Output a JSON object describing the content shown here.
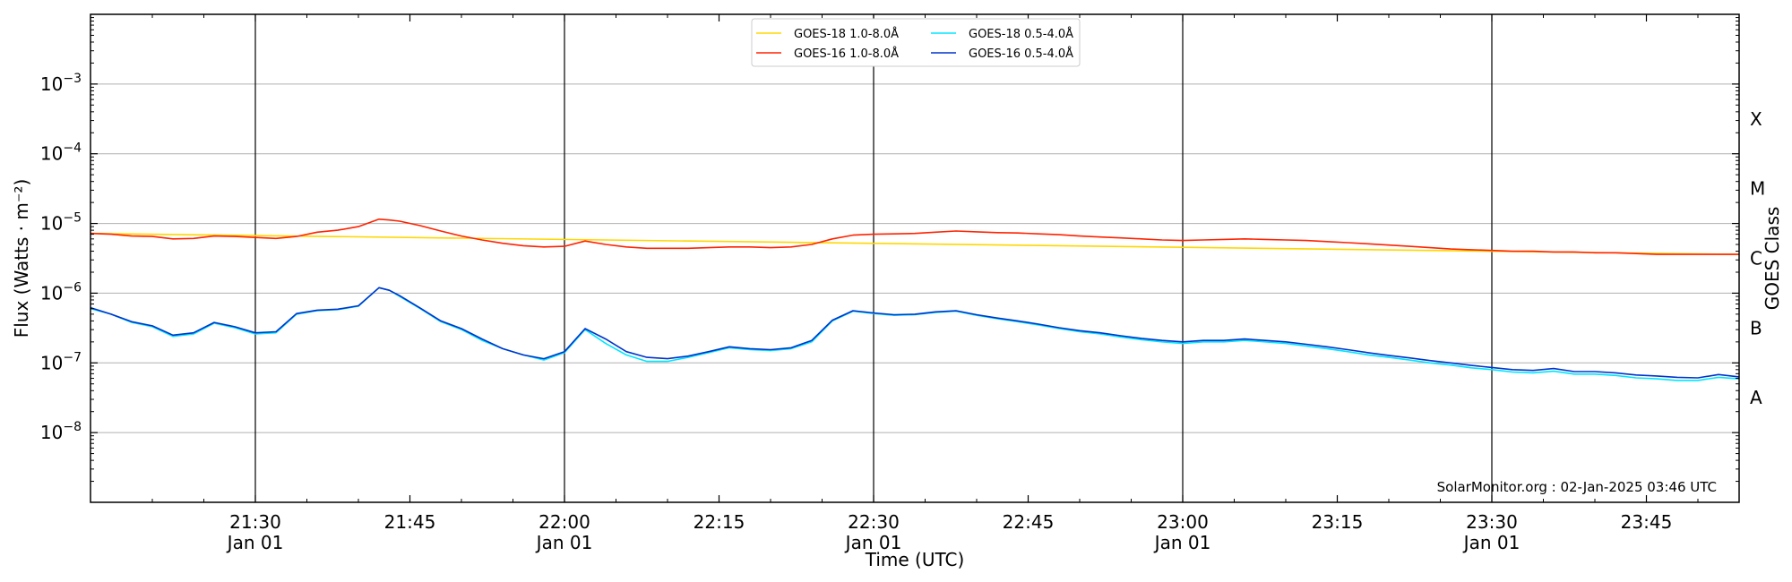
{
  "chart_data": {
    "type": "line",
    "title": "",
    "xlabel": "Time (UTC)",
    "ylabel": "Flux (Watts · m⁻²)",
    "ylabel_right": "GOES Class",
    "yscale": "log",
    "ylim": [
      1e-09,
      0.01
    ],
    "xlim_minutes": [
      1274,
      1434
    ],
    "x_ticks": [
      {
        "minute": 1290,
        "time": "21:30",
        "date": "Jan 01",
        "major": true
      },
      {
        "minute": 1305,
        "time": "21:45",
        "date": "",
        "major": false
      },
      {
        "minute": 1320,
        "time": "22:00",
        "date": "Jan 01",
        "major": true
      },
      {
        "minute": 1335,
        "time": "22:15",
        "date": "",
        "major": false
      },
      {
        "minute": 1350,
        "time": "22:30",
        "date": "Jan 01",
        "major": true
      },
      {
        "minute": 1365,
        "time": "22:45",
        "date": "",
        "major": false
      },
      {
        "minute": 1380,
        "time": "23:00",
        "date": "Jan 01",
        "major": true
      },
      {
        "minute": 1395,
        "time": "23:15",
        "date": "",
        "major": false
      },
      {
        "minute": 1410,
        "time": "23:30",
        "date": "Jan 01",
        "major": true
      },
      {
        "minute": 1425,
        "time": "23:45",
        "date": "",
        "major": false
      }
    ],
    "y_ticks": [
      {
        "exp": -8,
        "base": "10",
        "sup": "−8"
      },
      {
        "exp": -7,
        "base": "10",
        "sup": "−7"
      },
      {
        "exp": -6,
        "base": "10",
        "sup": "−6"
      },
      {
        "exp": -5,
        "base": "10",
        "sup": "−5"
      },
      {
        "exp": -4,
        "base": "10",
        "sup": "−4"
      },
      {
        "exp": -3,
        "base": "10",
        "sup": "−3"
      }
    ],
    "goes_classes": [
      {
        "label": "A",
        "exp": -7.5
      },
      {
        "label": "B",
        "exp": -6.5
      },
      {
        "label": "C",
        "exp": -5.5
      },
      {
        "label": "M",
        "exp": -4.5
      },
      {
        "label": "X",
        "exp": -3.5
      }
    ],
    "grid": true,
    "legend_position": "top-center",
    "credit": "SolarMonitor.org : 02-Jan-2025 03:46 UTC",
    "series": [
      {
        "name": "GOES-18 1.0-8.0Å",
        "color": "#ffd700",
        "x": [
          1274,
          1434
        ],
        "y": [
          7.2e-06,
          3.6e-06
        ]
      },
      {
        "name": "GOES-16 1.0-8.0Å",
        "color": "#ff2200",
        "x": [
          1274,
          1276,
          1278,
          1280,
          1282,
          1284,
          1286,
          1288,
          1290,
          1292,
          1294,
          1296,
          1298,
          1300,
          1302,
          1303,
          1304,
          1306,
          1308,
          1310,
          1312,
          1314,
          1316,
          1318,
          1320,
          1322,
          1324,
          1326,
          1328,
          1330,
          1332,
          1334,
          1336,
          1338,
          1340,
          1342,
          1344,
          1346,
          1348,
          1350,
          1352,
          1354,
          1356,
          1358,
          1360,
          1362,
          1364,
          1366,
          1368,
          1370,
          1372,
          1374,
          1376,
          1378,
          1380,
          1382,
          1384,
          1386,
          1388,
          1390,
          1392,
          1394,
          1396,
          1398,
          1400,
          1402,
          1404,
          1406,
          1408,
          1410,
          1412,
          1414,
          1416,
          1418,
          1420,
          1422,
          1424,
          1426,
          1428,
          1430,
          1432,
          1434
        ],
        "y": [
          7.2e-06,
          7e-06,
          6.6e-06,
          6.5e-06,
          6e-06,
          6.1e-06,
          6.6e-06,
          6.5e-06,
          6.3e-06,
          6.1e-06,
          6.5e-06,
          7.5e-06,
          8e-06,
          9e-06,
          1.15e-05,
          1.12e-05,
          1.08e-05,
          9.3e-06,
          7.8e-06,
          6.6e-06,
          5.8e-06,
          5.2e-06,
          4.8e-06,
          4.6e-06,
          4.7e-06,
          5.6e-06,
          5e-06,
          4.6e-06,
          4.4e-06,
          4.4e-06,
          4.4e-06,
          4.5e-06,
          4.6e-06,
          4.6e-06,
          4.5e-06,
          4.6e-06,
          5e-06,
          6e-06,
          6.8e-06,
          7e-06,
          7.1e-06,
          7.2e-06,
          7.5e-06,
          7.8e-06,
          7.6e-06,
          7.4e-06,
          7.3e-06,
          7.1e-06,
          6.9e-06,
          6.6e-06,
          6.4e-06,
          6.2e-06,
          6e-06,
          5.8e-06,
          5.7e-06,
          5.8e-06,
          5.9e-06,
          6e-06,
          5.9e-06,
          5.8e-06,
          5.7e-06,
          5.5e-06,
          5.3e-06,
          5.1e-06,
          4.9e-06,
          4.7e-06,
          4.5e-06,
          4.3e-06,
          4.2e-06,
          4.1e-06,
          4e-06,
          4e-06,
          3.9e-06,
          3.9e-06,
          3.8e-06,
          3.8e-06,
          3.7e-06,
          3.6e-06,
          3.6e-06,
          3.6e-06,
          3.6e-06,
          3.6e-06
        ]
      },
      {
        "name": "GOES-18 0.5-4.0Å",
        "color": "#00e5ff",
        "x": [
          1274,
          1276,
          1278,
          1280,
          1282,
          1284,
          1286,
          1288,
          1290,
          1292,
          1294,
          1296,
          1298,
          1300,
          1302,
          1303,
          1304,
          1306,
          1308,
          1310,
          1312,
          1314,
          1316,
          1318,
          1320,
          1322,
          1324,
          1326,
          1328,
          1330,
          1332,
          1334,
          1336,
          1338,
          1340,
          1342,
          1344,
          1346,
          1348,
          1350,
          1352,
          1354,
          1356,
          1358,
          1360,
          1362,
          1364,
          1366,
          1368,
          1370,
          1372,
          1374,
          1376,
          1378,
          1380,
          1382,
          1384,
          1386,
          1388,
          1390,
          1392,
          1394,
          1396,
          1398,
          1400,
          1402,
          1404,
          1406,
          1408,
          1410,
          1412,
          1414,
          1416,
          1418,
          1420,
          1422,
          1424,
          1426,
          1428,
          1430,
          1432,
          1434
        ],
        "y": [
          6e-07,
          5e-07,
          3.8e-07,
          3.3e-07,
          2.4e-07,
          2.6e-07,
          3.7e-07,
          3.2e-07,
          2.6e-07,
          2.7e-07,
          5e-07,
          5.6e-07,
          5.8e-07,
          6.5e-07,
          1.2e-06,
          1.1e-06,
          9e-07,
          6e-07,
          3.9e-07,
          3e-07,
          2.1e-07,
          1.6e-07,
          1.3e-07,
          1.1e-07,
          1.4e-07,
          3e-07,
          1.9e-07,
          1.3e-07,
          1.05e-07,
          1.05e-07,
          1.2e-07,
          1.4e-07,
          1.65e-07,
          1.55e-07,
          1.5e-07,
          1.6e-07,
          2e-07,
          4e-07,
          5.5e-07,
          5.1e-07,
          4.8e-07,
          4.9e-07,
          5.3e-07,
          5.5e-07,
          4.8e-07,
          4.3e-07,
          3.9e-07,
          3.5e-07,
          3.1e-07,
          2.8e-07,
          2.6e-07,
          2.35e-07,
          2.15e-07,
          2e-07,
          1.9e-07,
          2e-07,
          2e-07,
          2.1e-07,
          2e-07,
          1.9e-07,
          1.75e-07,
          1.6e-07,
          1.45e-07,
          1.3e-07,
          1.2e-07,
          1.1e-07,
          1e-07,
          9.3e-08,
          8.5e-08,
          8e-08,
          7.4e-08,
          7.2e-08,
          7.6e-08,
          6.9e-08,
          6.9e-08,
          6.6e-08,
          6.1e-08,
          5.9e-08,
          5.6e-08,
          5.6e-08,
          6.2e-08,
          5.9e-08
        ]
      },
      {
        "name": "GOES-16 0.5-4.0Å",
        "color": "#0033cc",
        "x": [
          1274,
          1276,
          1278,
          1280,
          1282,
          1284,
          1286,
          1288,
          1290,
          1292,
          1294,
          1296,
          1298,
          1300,
          1302,
          1303,
          1304,
          1306,
          1308,
          1310,
          1312,
          1314,
          1316,
          1318,
          1320,
          1322,
          1324,
          1326,
          1328,
          1330,
          1332,
          1334,
          1336,
          1338,
          1340,
          1342,
          1344,
          1346,
          1348,
          1350,
          1352,
          1354,
          1356,
          1358,
          1360,
          1362,
          1364,
          1366,
          1368,
          1370,
          1372,
          1374,
          1376,
          1378,
          1380,
          1382,
          1384,
          1386,
          1388,
          1390,
          1392,
          1394,
          1396,
          1398,
          1400,
          1402,
          1404,
          1406,
          1408,
          1410,
          1412,
          1414,
          1416,
          1418,
          1420,
          1422,
          1424,
          1426,
          1428,
          1430,
          1432,
          1434
        ],
        "y": [
          6.2e-07,
          5e-07,
          3.9e-07,
          3.4e-07,
          2.5e-07,
          2.7e-07,
          3.8e-07,
          3.3e-07,
          2.7e-07,
          2.8e-07,
          5.1e-07,
          5.7e-07,
          5.9e-07,
          6.6e-07,
          1.2e-06,
          1.1e-06,
          9.2e-07,
          6.1e-07,
          4e-07,
          3.1e-07,
          2.2e-07,
          1.6e-07,
          1.3e-07,
          1.15e-07,
          1.45e-07,
          3.1e-07,
          2.2e-07,
          1.45e-07,
          1.2e-07,
          1.15e-07,
          1.25e-07,
          1.45e-07,
          1.7e-07,
          1.6e-07,
          1.55e-07,
          1.65e-07,
          2.1e-07,
          4.1e-07,
          5.6e-07,
          5.2e-07,
          4.9e-07,
          5e-07,
          5.4e-07,
          5.6e-07,
          4.9e-07,
          4.4e-07,
          4e-07,
          3.6e-07,
          3.2e-07,
          2.9e-07,
          2.7e-07,
          2.45e-07,
          2.25e-07,
          2.1e-07,
          2e-07,
          2.1e-07,
          2.1e-07,
          2.2e-07,
          2.1e-07,
          2e-07,
          1.85e-07,
          1.7e-07,
          1.55e-07,
          1.4e-07,
          1.28e-07,
          1.18e-07,
          1.08e-07,
          1e-07,
          9.2e-08,
          8.6e-08,
          8e-08,
          7.8e-08,
          8.3e-08,
          7.5e-08,
          7.5e-08,
          7.2e-08,
          6.7e-08,
          6.5e-08,
          6.2e-08,
          6.1e-08,
          6.8e-08,
          6.3e-08
        ]
      }
    ]
  }
}
